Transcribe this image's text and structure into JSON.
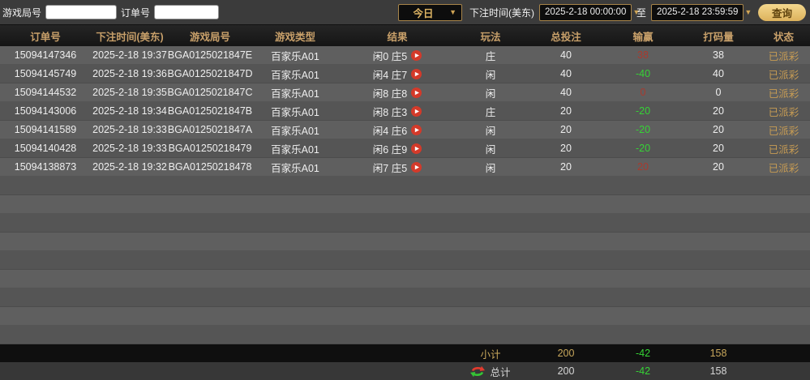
{
  "topbar": {
    "game_round_label": "游戏局号",
    "game_round_value": "",
    "order_no_label": "订单号",
    "order_no_value": "",
    "period_select_value": "今日",
    "bet_time_label": "下注时间(美东)",
    "start_time_value": "2025-2-18 00:00:00",
    "to_label": "至",
    "end_time_value": "2025-2-18 23:59:59",
    "query_button_label": "查询"
  },
  "table": {
    "columns": [
      {
        "key": "order",
        "label": "订单号"
      },
      {
        "key": "bet_time",
        "label": "下注时间(美东)"
      },
      {
        "key": "round",
        "label": "游戏局号"
      },
      {
        "key": "game_type",
        "label": "游戏类型"
      },
      {
        "key": "result",
        "label": "结果"
      },
      {
        "key": "play",
        "label": "玩法"
      },
      {
        "key": "total_bet",
        "label": "总投注"
      },
      {
        "key": "win_loss",
        "label": "输赢"
      },
      {
        "key": "wager",
        "label": "打码量"
      },
      {
        "key": "status",
        "label": "状态"
      }
    ],
    "rows": [
      {
        "order": "15094147346",
        "bet_time": "2025-2-18 19:37",
        "round": "BGA0125021847E",
        "game_type": "百家乐A01",
        "result": "闲0 庄5",
        "play": "庄",
        "total_bet": "40",
        "win_loss": "38",
        "wager": "38",
        "status": "已派彩"
      },
      {
        "order": "15094145749",
        "bet_time": "2025-2-18 19:36",
        "round": "BGA0125021847D",
        "game_type": "百家乐A01",
        "result": "闲4 庄7",
        "play": "闲",
        "total_bet": "40",
        "win_loss": "-40",
        "wager": "40",
        "status": "已派彩"
      },
      {
        "order": "15094144532",
        "bet_time": "2025-2-18 19:35",
        "round": "BGA0125021847C",
        "game_type": "百家乐A01",
        "result": "闲8 庄8",
        "play": "闲",
        "total_bet": "40",
        "win_loss": "0",
        "wager": "0",
        "status": "已派彩"
      },
      {
        "order": "15094143006",
        "bet_time": "2025-2-18 19:34",
        "round": "BGA0125021847B",
        "game_type": "百家乐A01",
        "result": "闲8 庄3",
        "play": "庄",
        "total_bet": "20",
        "win_loss": "-20",
        "wager": "20",
        "status": "已派彩"
      },
      {
        "order": "15094141589",
        "bet_time": "2025-2-18 19:33",
        "round": "BGA0125021847A",
        "game_type": "百家乐A01",
        "result": "闲4 庄6",
        "play": "闲",
        "total_bet": "20",
        "win_loss": "-20",
        "wager": "20",
        "status": "已派彩"
      },
      {
        "order": "15094140428",
        "bet_time": "2025-2-18 19:33",
        "round": "BGA01250218479",
        "game_type": "百家乐A01",
        "result": "闲6 庄9",
        "play": "闲",
        "total_bet": "20",
        "win_loss": "-20",
        "wager": "20",
        "status": "已派彩"
      },
      {
        "order": "15094138873",
        "bet_time": "2025-2-18 19:32",
        "round": "BGA01250218478",
        "game_type": "百家乐A01",
        "result": "闲7 庄5",
        "play": "闲",
        "total_bet": "20",
        "win_loss": "20",
        "wager": "20",
        "status": "已派彩"
      }
    ]
  },
  "summary": {
    "subtotal": {
      "label": "小计",
      "total_bet": "200",
      "win_loss": "-42",
      "wager": "158"
    },
    "total": {
      "label": "总计",
      "total_bet": "200",
      "win_loss": "-42",
      "wager": "158"
    }
  },
  "icons": {
    "play": "play-icon",
    "refresh": "refresh-sync-icon",
    "dropdown_arrow": "chevron-down-icon"
  },
  "colors": {
    "header_text": "#c8a06a",
    "win_red": "#a93a2e",
    "loss_green": "#35d435",
    "status_gold": "#c79c54",
    "subtotal_gold": "#c9a85c",
    "query_btn_bg": "#e6c172"
  }
}
